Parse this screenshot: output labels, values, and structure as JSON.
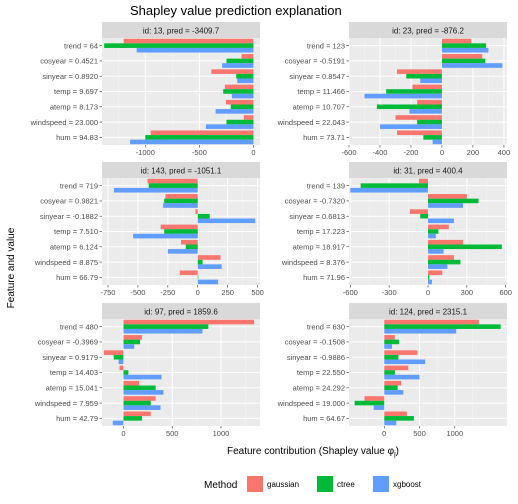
{
  "title": "Shapley value prediction explanation",
  "xlabel": "Feature contribution (Shapley value φj)",
  "xlabel_main": "Feature contribution (Shapley value φ",
  "xlabel_sub": "j",
  "xlabel_end": ")",
  "ylabel": "Feature and value",
  "legend": {
    "title": "Method",
    "items": [
      {
        "name": "gaussian",
        "color": "#F8766D"
      },
      {
        "name": "ctree",
        "color": "#00BA38"
      },
      {
        "name": "xgboost",
        "color": "#619CFF"
      }
    ]
  },
  "chart_data": [
    {
      "type": "bar",
      "strip": "id: 13, pred = -3409.7",
      "categories": [
        "trend = 64",
        "cosyear = 0.4521",
        "sinyear = 0.8920",
        "temp = 9.697",
        "atemp = 8.173",
        "windspeed = 23.000",
        "hum = 94.83"
      ],
      "xlim": [
        -1400,
        60
      ],
      "ticks": [
        -1000,
        -500,
        0
      ],
      "series": [
        {
          "name": "gaussian",
          "values": [
            -1200,
            -110,
            -390,
            -265,
            -255,
            -90,
            -950
          ]
        },
        {
          "name": "ctree",
          "values": [
            -1380,
            -250,
            -160,
            -280,
            -210,
            -250,
            -1000
          ]
        },
        {
          "name": "xgboost",
          "values": [
            -1080,
            -290,
            -150,
            -200,
            -350,
            -440,
            -1140
          ]
        }
      ]
    },
    {
      "type": "bar",
      "strip": "id: 23, pred = -876.2",
      "categories": [
        "trend = 123",
        "cosyear = -0.5191",
        "sinyear = 0.8547",
        "temp = 11.466",
        "atemp = 10.707",
        "windspeed = 22.043",
        "hum = 73.71"
      ],
      "xlim": [
        -600,
        420
      ],
      "ticks": [
        -600,
        -400,
        -200,
        0,
        200,
        400
      ],
      "series": [
        {
          "name": "gaussian",
          "values": [
            190,
            260,
            -290,
            -190,
            -160,
            -300,
            -290
          ]
        },
        {
          "name": "ctree",
          "values": [
            285,
            280,
            -230,
            -360,
            -420,
            -160,
            -120
          ]
        },
        {
          "name": "xgboost",
          "values": [
            300,
            390,
            -140,
            -500,
            -210,
            -400,
            -60
          ]
        }
      ]
    },
    {
      "type": "bar",
      "strip": "id: 143, pred = -1051.1",
      "categories": [
        "trend = 719",
        "cosyear = 0.9821",
        "sinyear = -0.1882",
        "temp = 7.510",
        "atemp = 6.124",
        "windspeed = 8.875",
        "hum = 66.79"
      ],
      "xlim": [
        -800,
        520
      ],
      "ticks": [
        -750,
        -500,
        -250,
        0,
        250,
        500
      ],
      "series": [
        {
          "name": "gaussian",
          "values": [
            -420,
            -270,
            -20,
            -310,
            -140,
            190,
            -150
          ]
        },
        {
          "name": "ctree",
          "values": [
            -410,
            -280,
            100,
            -280,
            -100,
            40,
            0
          ]
        },
        {
          "name": "xgboost",
          "values": [
            -700,
            -290,
            480,
            -540,
            -250,
            200,
            170
          ]
        }
      ]
    },
    {
      "type": "bar",
      "strip": "id: 31, pred =  400.4",
      "categories": [
        "trend = 139",
        "cosyear = -0.7320",
        "sinyear = 0.6813",
        "temp = 17.223",
        "atemp = 18.917",
        "windspeed = 8.376",
        "hum = 71.96"
      ],
      "xlim": [
        -610,
        610
      ],
      "ticks": [
        -600,
        -300,
        0,
        300,
        600
      ],
      "series": [
        {
          "name": "gaussian",
          "values": [
            -70,
            300,
            -140,
            160,
            270,
            200,
            110
          ]
        },
        {
          "name": "ctree",
          "values": [
            -520,
            390,
            -60,
            80,
            570,
            250,
            10
          ]
        },
        {
          "name": "xgboost",
          "values": [
            -600,
            270,
            200,
            60,
            120,
            150,
            30
          ]
        }
      ]
    },
    {
      "type": "bar",
      "strip": "id: 97, pred =  1859.6",
      "categories": [
        "trend = 480",
        "cosyear = -0.3969",
        "sinyear = 0.9179",
        "temp = 14.403",
        "atemp = 15.041",
        "windspeed = 7.959",
        "hum = 42.79"
      ],
      "xlim": [
        -220,
        1400
      ],
      "ticks": [
        0,
        500,
        1000
      ],
      "series": [
        {
          "name": "gaussian",
          "values": [
            1340,
            190,
            -200,
            -40,
            160,
            330,
            280
          ]
        },
        {
          "name": "ctree",
          "values": [
            870,
            170,
            -100,
            50,
            330,
            280,
            190
          ]
        },
        {
          "name": "xgboost",
          "values": [
            810,
            110,
            -50,
            390,
            410,
            380,
            -110
          ]
        }
      ]
    },
    {
      "type": "bar",
      "strip": "id: 124, pred =  2315.1",
      "categories": [
        "trend = 630",
        "cosyear = -0.1508",
        "sinyear = -0.9886",
        "temp = 22.550",
        "atemp = 24.292",
        "windspeed = 19.000",
        "hum = 64.67"
      ],
      "xlim": [
        -500,
        1740
      ],
      "ticks": [
        0,
        500,
        1000
      ],
      "series": [
        {
          "name": "gaussian",
          "values": [
            1340,
            150,
            470,
            340,
            240,
            -280,
            320
          ]
        },
        {
          "name": "ctree",
          "values": [
            1650,
            210,
            200,
            150,
            190,
            -420,
            420
          ]
        },
        {
          "name": "xgboost",
          "values": [
            1020,
            110,
            580,
            500,
            270,
            -150,
            170
          ]
        }
      ]
    }
  ]
}
